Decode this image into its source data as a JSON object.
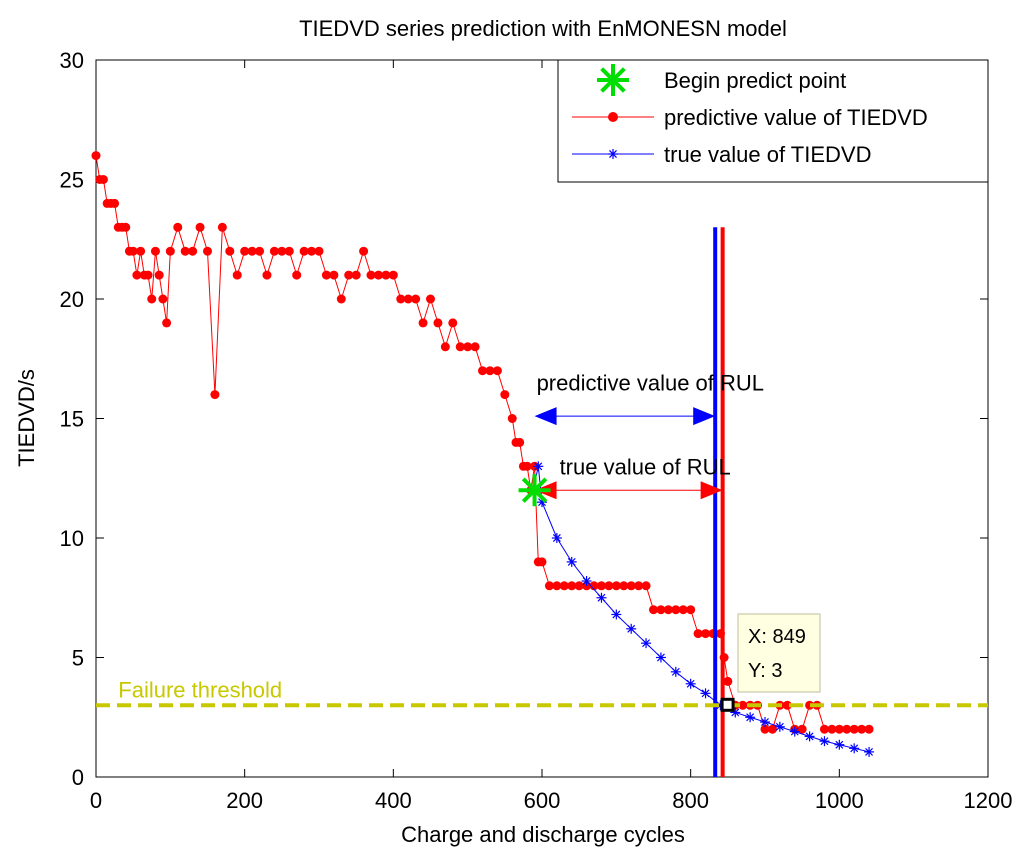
{
  "chart_data": {
    "type": "line",
    "title": "TIEDVD series prediction with EnMONESN model",
    "xlabel": "Charge and discharge cycles",
    "ylabel": "TIEDVD/s",
    "xlim": [
      0,
      1200
    ],
    "ylim": [
      0,
      30
    ],
    "xticks": [
      0,
      200,
      400,
      600,
      800,
      1000,
      1200
    ],
    "yticks": [
      0,
      5,
      10,
      15,
      20,
      25,
      30
    ],
    "grid": false,
    "legend_position": "top-right",
    "legend": [
      {
        "label": "Begin predict point",
        "color": "#00dd00",
        "marker": "star"
      },
      {
        "label": "predictive value of TIEDVD",
        "color": "#ff0000",
        "marker": "dot"
      },
      {
        "label": "true value of TIEDVD",
        "color": "#0000ff",
        "marker": "asterisk"
      }
    ],
    "series": [
      {
        "name": "predictive value of TIEDVD",
        "color": "#ff0000",
        "x": [
          0,
          5,
          10,
          15,
          20,
          25,
          30,
          35,
          40,
          45,
          50,
          55,
          60,
          65,
          70,
          75,
          80,
          85,
          90,
          95,
          100,
          110,
          120,
          130,
          140,
          150,
          160,
          170,
          180,
          190,
          200,
          210,
          220,
          230,
          240,
          250,
          260,
          270,
          280,
          290,
          300,
          310,
          320,
          330,
          340,
          350,
          360,
          370,
          380,
          390,
          400,
          410,
          420,
          430,
          440,
          450,
          460,
          470,
          480,
          490,
          500,
          510,
          520,
          530,
          540,
          550,
          560,
          565,
          570,
          575,
          580,
          585,
          590,
          595,
          600,
          610,
          620,
          630,
          640,
          650,
          660,
          670,
          680,
          690,
          700,
          710,
          720,
          730,
          740,
          750,
          760,
          770,
          780,
          790,
          800,
          810,
          820,
          830,
          840,
          845,
          850,
          860,
          870,
          880,
          890,
          900,
          910,
          920,
          930,
          940,
          950,
          960,
          970,
          980,
          990,
          1000,
          1010,
          1020,
          1030,
          1040
        ],
        "values": [
          26,
          25,
          25,
          24,
          24,
          24,
          23,
          23,
          23,
          22,
          22,
          21,
          22,
          21,
          21,
          20,
          22,
          21,
          20,
          19,
          22,
          23,
          22,
          22,
          23,
          22,
          16,
          23,
          22,
          21,
          22,
          22,
          22,
          21,
          22,
          22,
          22,
          21,
          22,
          22,
          22,
          21,
          21,
          20,
          21,
          21,
          22,
          21,
          21,
          21,
          21,
          20,
          20,
          20,
          19,
          20,
          19,
          18,
          19,
          18,
          18,
          18,
          17,
          17,
          17,
          16,
          15,
          14,
          14,
          13,
          13,
          12,
          13,
          9,
          9,
          8,
          8,
          8,
          8,
          8,
          8,
          8,
          8,
          8,
          8,
          8,
          8,
          8,
          8,
          7,
          7,
          7,
          7,
          7,
          7,
          6,
          6,
          6,
          6,
          5,
          4,
          3,
          3,
          3,
          3,
          2,
          2,
          3,
          3,
          2,
          2,
          3,
          3,
          2,
          2,
          2,
          2,
          2,
          2,
          2
        ]
      },
      {
        "name": "true value of TIEDVD",
        "color": "#0000ff",
        "x": [
          588,
          595,
          600,
          620,
          640,
          660,
          680,
          700,
          720,
          740,
          760,
          780,
          800,
          820,
          840,
          860,
          880,
          900,
          920,
          940,
          960,
          980,
          1000,
          1020,
          1040
        ],
        "values": [
          12,
          13,
          11.5,
          10,
          9,
          8.2,
          7.5,
          6.8,
          6.2,
          5.6,
          5,
          4.4,
          3.9,
          3.5,
          3,
          2.7,
          2.5,
          2.3,
          2.1,
          1.9,
          1.7,
          1.5,
          1.35,
          1.2,
          1.05
        ]
      }
    ],
    "begin_predict_point": {
      "x": 590,
      "y": 12
    },
    "vertical_lines": [
      {
        "x": 833,
        "color": "#0000ff"
      },
      {
        "x": 843,
        "color": "#ff0000"
      }
    ],
    "failure_threshold": {
      "y": 3,
      "label": "Failure threshold",
      "color": "#c8c800"
    },
    "annotations": [
      {
        "text": "predictive value of RUL",
        "arrow_from": 590,
        "arrow_to": 833,
        "arrow_y": 15.1,
        "text_y": 16.5,
        "color": "#0000ff"
      },
      {
        "text": "true value of RUL",
        "arrow_from": 590,
        "arrow_to": 843,
        "arrow_y": 12,
        "text_y": 13,
        "color": "#ff0000"
      }
    ],
    "datatip": {
      "x": 849,
      "y": 3,
      "text_x": "X: 849",
      "text_y": "Y: 3"
    }
  }
}
